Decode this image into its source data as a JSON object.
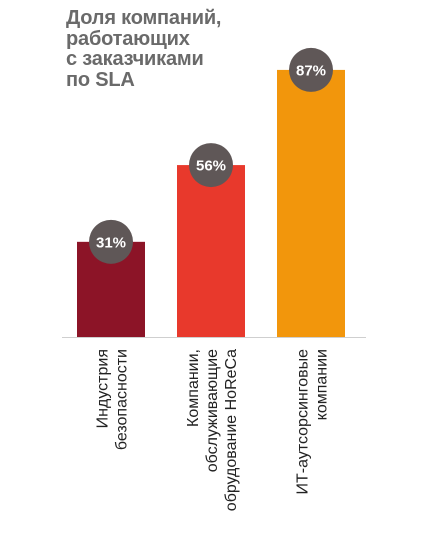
{
  "chart_data": {
    "type": "bar",
    "title_lines": [
      "Доля компаний,",
      "работающих",
      "с заказчиками",
      "по SLA"
    ],
    "categories": [
      [
        "Индустрия",
        "безопасности"
      ],
      [
        "Компании,",
        "обслуживающие",
        "обрудование HoReCa"
      ],
      [
        "ИТ-аутсорсинговые",
        "компании"
      ]
    ],
    "values": [
      31,
      56,
      87
    ],
    "value_labels": [
      "31%",
      "56%",
      "87%"
    ],
    "colors": [
      "#8c1427",
      "#e8392c",
      "#f2960c"
    ],
    "badge_color": "#5f5757",
    "ylim": [
      0,
      100
    ],
    "xlabel": "",
    "ylabel": "",
    "grid": false
  }
}
